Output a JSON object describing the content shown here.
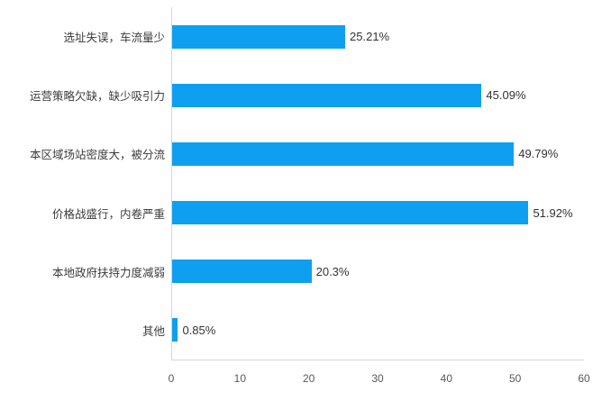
{
  "chart_data": {
    "type": "bar",
    "orientation": "horizontal",
    "title": "",
    "xlabel": "",
    "ylabel": "",
    "categories": [
      "选址失误，车流量少",
      "运营策略欠缺，缺少吸引力",
      "本区域场站密度大，被分流",
      "价格战盛行，内卷严重",
      "本地政府扶持力度减弱",
      "其他"
    ],
    "values": [
      25.21,
      45.09,
      49.79,
      51.92,
      20.3,
      0.85
    ],
    "data_labels": [
      "25.21%",
      "45.09%",
      "49.79%",
      "51.92%",
      "20.3%",
      "0.85%"
    ],
    "xlim": [
      0,
      60
    ],
    "x_ticks": [
      0,
      10,
      20,
      30,
      40,
      50,
      60
    ],
    "grid": false,
    "legend": "none",
    "bar_color": "#0f9ff0",
    "axis_color": "#d6d6d6",
    "label_color": "#3c3c3c",
    "tick_color": "#595959"
  }
}
